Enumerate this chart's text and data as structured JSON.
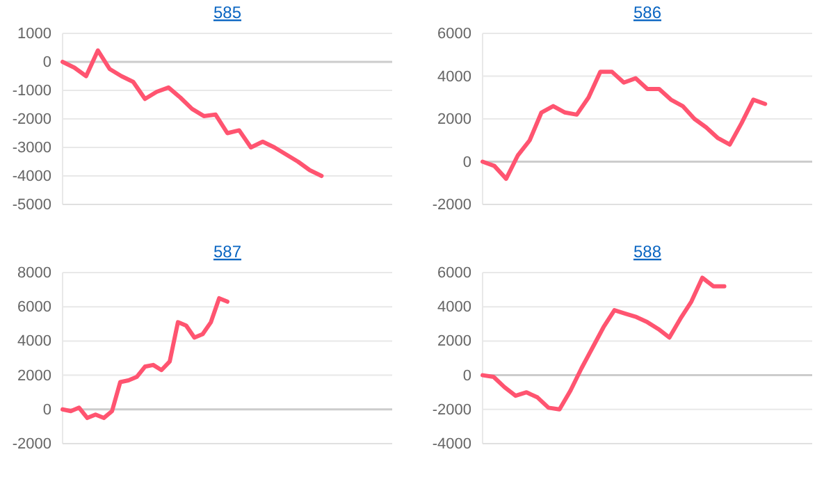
{
  "chart_data": [
    {
      "type": "line",
      "title": "585",
      "categories": [
        null,
        null,
        null,
        null,
        null,
        null,
        null,
        null,
        null,
        null,
        null,
        null,
        null,
        null,
        null,
        null,
        null,
        null,
        null,
        null,
        null,
        null,
        null,
        null,
        null,
        null,
        null,
        null,
        null
      ],
      "series": [
        {
          "color": "#ff5470",
          "values": [
            0,
            -200,
            -500,
            400,
            -250,
            -500,
            -700,
            -1300,
            -1050,
            -900,
            -1250,
            -1650,
            -1900,
            -1850,
            -2500,
            -2400,
            -3000,
            -2800,
            -3000,
            -3250,
            -3500,
            -3800,
            -4000,
            null,
            null,
            null,
            null,
            null,
            null
          ]
        }
      ],
      "ylim": [
        -5000,
        1000
      ],
      "yticks": [
        -5000,
        -4000,
        -3000,
        -2000,
        -1000,
        0,
        1000
      ],
      "grid": "y",
      "marker": "none",
      "line_style": "solid"
    },
    {
      "type": "line",
      "title": "586",
      "categories": [
        null,
        null,
        null,
        null,
        null,
        null,
        null,
        null,
        null,
        null,
        null,
        null,
        null,
        null,
        null,
        null,
        null,
        null,
        null,
        null,
        null,
        null,
        null,
        null,
        null,
        null,
        null,
        null,
        null
      ],
      "series": [
        {
          "color": "#ff5470",
          "values": [
            0,
            -200,
            -800,
            300,
            1000,
            2300,
            2600,
            2300,
            2200,
            3000,
            4200,
            4200,
            3700,
            3900,
            3400,
            3400,
            2900,
            2600,
            2000,
            1600,
            1100,
            800,
            1800,
            2900,
            2700,
            null,
            null,
            null,
            null
          ]
        }
      ],
      "ylim": [
        -2000,
        6000
      ],
      "yticks": [
        -2000,
        0,
        2000,
        4000,
        6000
      ],
      "grid": "y",
      "marker": "none",
      "line_style": "solid"
    },
    {
      "type": "line",
      "title": "587",
      "categories": [
        null,
        null,
        null,
        null,
        null,
        null,
        null,
        null,
        null,
        null,
        null,
        null,
        null,
        null,
        null,
        null,
        null,
        null,
        null,
        null,
        null,
        null,
        null,
        null,
        null,
        null,
        null,
        null,
        null,
        null,
        null,
        null,
        null,
        null,
        null,
        null,
        null,
        null,
        null,
        null,
        null
      ],
      "series": [
        {
          "color": "#ff5470",
          "values": [
            0,
            -100,
            100,
            -500,
            -300,
            -500,
            -100,
            1600,
            1700,
            1900,
            2500,
            2600,
            2300,
            2800,
            5100,
            4900,
            4200,
            4400,
            5100,
            6500,
            6300,
            null,
            null,
            null,
            null,
            null,
            null,
            null,
            null,
            null,
            null,
            null,
            null,
            null,
            null,
            null,
            null,
            null,
            null,
            null,
            null
          ]
        }
      ],
      "ylim": [
        -2000,
        8000
      ],
      "yticks": [
        -2000,
        0,
        2000,
        4000,
        6000,
        8000
      ],
      "grid": "y",
      "marker": "none",
      "line_style": "solid"
    },
    {
      "type": "line",
      "title": "588",
      "categories": [
        null,
        null,
        null,
        null,
        null,
        null,
        null,
        null,
        null,
        null,
        null,
        null,
        null,
        null,
        null,
        null,
        null,
        null,
        null,
        null,
        null,
        null,
        null,
        null,
        null,
        null,
        null,
        null,
        null,
        null,
        null
      ],
      "series": [
        {
          "color": "#ff5470",
          "values": [
            0,
            -100,
            -700,
            -1200,
            -1000,
            -1300,
            -1900,
            -2000,
            -900,
            400,
            1600,
            2800,
            3800,
            3600,
            3400,
            3100,
            2700,
            2200,
            3300,
            4300,
            5700,
            5200,
            5200,
            null,
            null,
            null,
            null,
            null,
            null,
            null,
            null
          ]
        }
      ],
      "ylim": [
        -4000,
        6000
      ],
      "yticks": [
        -4000,
        -2000,
        0,
        2000,
        4000,
        6000
      ],
      "grid": "y",
      "marker": "none",
      "line_style": "solid"
    }
  ]
}
